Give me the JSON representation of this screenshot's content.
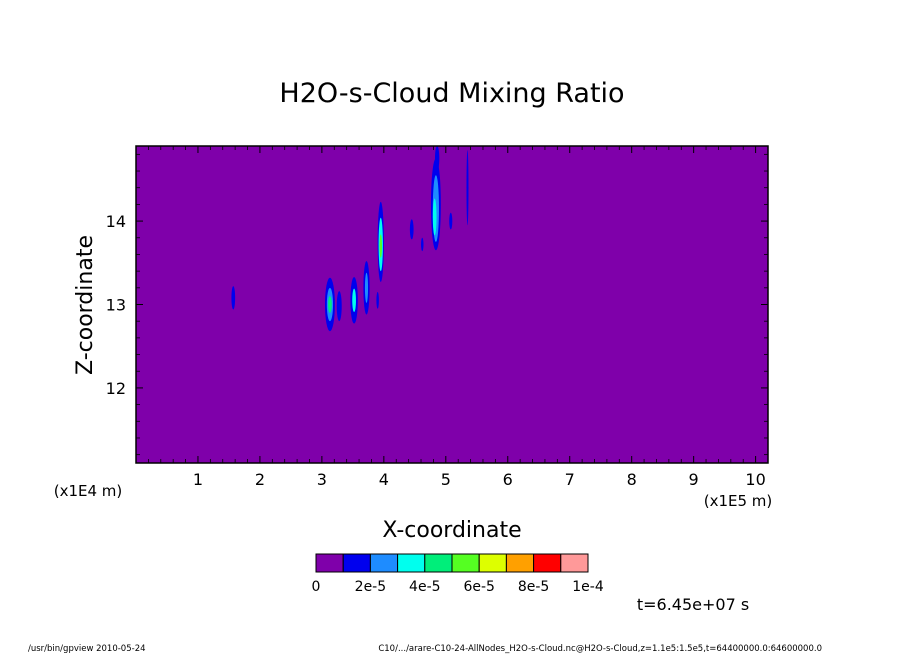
{
  "chart_data": {
    "type": "heatmap",
    "title": "H2O-s-Cloud Mixing Ratio",
    "xlabel": "X-coordinate",
    "ylabel": "Z-coordinate",
    "x_scale_note": "(x1E5 m)",
    "z_scale_note": "(x1E4 m)",
    "xlim": [
      0,
      10.2
    ],
    "ylim": [
      11.1,
      14.9
    ],
    "x_ticks": [
      1,
      2,
      3,
      4,
      5,
      6,
      7,
      8,
      9,
      10
    ],
    "y_ticks": [
      12,
      13,
      14
    ],
    "background_color": "#7f00aa",
    "colorbar": {
      "colors": [
        "#7f00aa",
        "#0000ee",
        "#1e8cff",
        "#00ffee",
        "#00ee7a",
        "#55ff22",
        "#ddff00",
        "#ffa000",
        "#ff0000",
        "#ff9999"
      ],
      "tick_labels": [
        "0",
        "2e-5",
        "4e-5",
        "6e-5",
        "8e-5",
        "1e-4"
      ]
    },
    "cloud_features": [
      {
        "x": 1.57,
        "z": 13.08,
        "dx": 0.03,
        "dz": 0.14,
        "level": 1
      },
      {
        "x": 3.13,
        "z": 13.0,
        "dx": 0.08,
        "dz": 0.32,
        "level": 1
      },
      {
        "x": 3.13,
        "z": 13.0,
        "dx": 0.05,
        "dz": 0.2,
        "level": 2
      },
      {
        "x": 3.13,
        "z": 13.0,
        "dx": 0.03,
        "dz": 0.1,
        "level": 4
      },
      {
        "x": 3.28,
        "z": 12.98,
        "dx": 0.04,
        "dz": 0.18,
        "level": 1
      },
      {
        "x": 3.52,
        "z": 13.05,
        "dx": 0.06,
        "dz": 0.28,
        "level": 1
      },
      {
        "x": 3.52,
        "z": 13.05,
        "dx": 0.03,
        "dz": 0.14,
        "level": 3
      },
      {
        "x": 3.72,
        "z": 13.2,
        "dx": 0.05,
        "dz": 0.32,
        "level": 1
      },
      {
        "x": 3.72,
        "z": 13.2,
        "dx": 0.025,
        "dz": 0.18,
        "level": 2
      },
      {
        "x": 3.9,
        "z": 13.05,
        "dx": 0.02,
        "dz": 0.1,
        "level": 1
      },
      {
        "x": 3.95,
        "z": 13.75,
        "dx": 0.05,
        "dz": 0.48,
        "level": 1
      },
      {
        "x": 3.95,
        "z": 13.72,
        "dx": 0.035,
        "dz": 0.32,
        "level": 3
      },
      {
        "x": 3.95,
        "z": 13.7,
        "dx": 0.02,
        "dz": 0.14,
        "level": 5
      },
      {
        "x": 4.45,
        "z": 13.9,
        "dx": 0.03,
        "dz": 0.12,
        "level": 1
      },
      {
        "x": 4.62,
        "z": 13.72,
        "dx": 0.02,
        "dz": 0.08,
        "level": 1
      },
      {
        "x": 4.84,
        "z": 14.2,
        "dx": 0.08,
        "dz": 0.55,
        "level": 1
      },
      {
        "x": 4.84,
        "z": 14.15,
        "dx": 0.05,
        "dz": 0.4,
        "level": 2
      },
      {
        "x": 4.82,
        "z": 14.05,
        "dx": 0.03,
        "dz": 0.22,
        "level": 3
      },
      {
        "x": 4.86,
        "z": 14.75,
        "dx": 0.035,
        "dz": 0.15,
        "level": 1
      },
      {
        "x": 5.08,
        "z": 14.0,
        "dx": 0.025,
        "dz": 0.1,
        "level": 1
      },
      {
        "x": 5.35,
        "z": 14.4,
        "dx": 0.015,
        "dz": 0.45,
        "level": 1
      }
    ]
  },
  "footer": {
    "time_label": "t=6.45e+07 s",
    "left_note": "/usr/bin/gpview  2010-05-24",
    "right_note": "C10/.../arare-C10-24-AllNodes_H2O-s-Cloud.nc@H2O-s-Cloud,z=1.1e5:1.5e5,t=64400000.0:64600000.0"
  }
}
